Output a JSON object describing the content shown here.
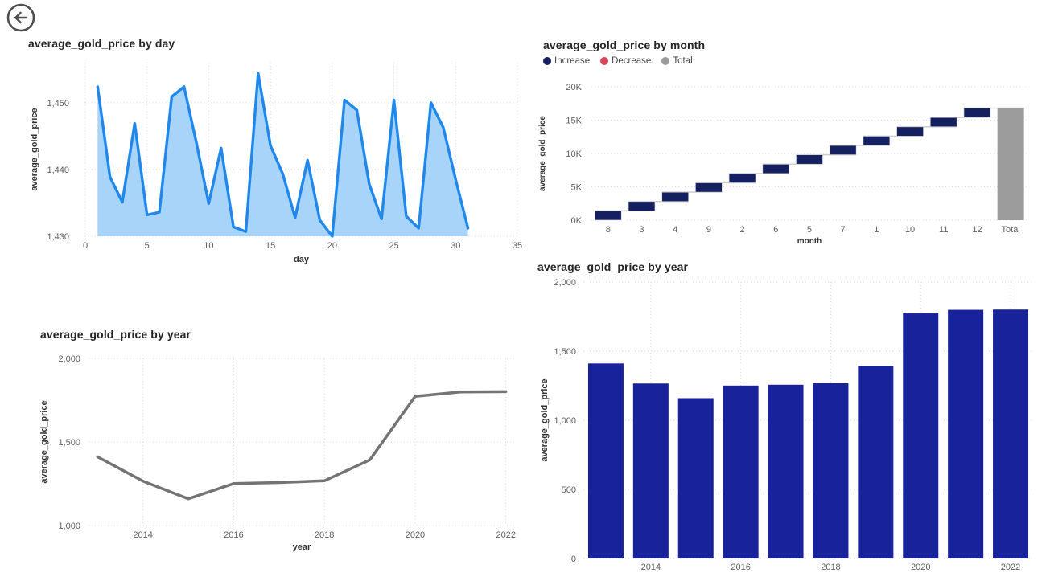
{
  "icons": {
    "back": "arrow-left-circle-icon"
  },
  "colors": {
    "title_text": "#252423",
    "tick_text": "#605e5c",
    "axis_title_text": "#333333",
    "gridline": "#d9d9d9",
    "back_icon": "#4f4f4f"
  },
  "chart_data": [
    {
      "id": "day_area",
      "type": "area",
      "title": "average_gold_price by day",
      "xlabel": "day",
      "ylabel": "average_gold_price",
      "x": [
        1,
        2,
        3,
        4,
        5,
        6,
        7,
        8,
        9,
        10,
        11,
        12,
        13,
        14,
        15,
        16,
        17,
        18,
        19,
        20,
        21,
        22,
        23,
        24,
        25,
        26,
        27,
        28,
        29,
        30,
        31
      ],
      "y": [
        1452.4,
        1438.9,
        1435.1,
        1446.9,
        1433.2,
        1433.6,
        1450.9,
        1452.4,
        1444.0,
        1434.9,
        1443.2,
        1431.4,
        1430.7,
        1454.4,
        1443.6,
        1439.3,
        1432.8,
        1441.4,
        1432.4,
        1430.0,
        1450.4,
        1448.9,
        1437.8,
        1432.6,
        1450.4,
        1433.0,
        1431.2,
        1450.0,
        1446.3,
        1438.5,
        1431.2
      ],
      "xlim": [
        0,
        35
      ],
      "ylim": [
        1430,
        1456
      ],
      "x_ticks": [
        0,
        5,
        10,
        15,
        20,
        25,
        30,
        35
      ],
      "y_ticks": [
        1430,
        1440,
        1450
      ],
      "y_tick_labels": [
        "1,430",
        "1,440",
        "1,450"
      ],
      "grid": true,
      "legend_position": "none",
      "line_color": "#1f88ea",
      "fill_color": "#a9d4f9"
    },
    {
      "id": "month_waterfall",
      "type": "waterfall",
      "title": "average_gold_price by month",
      "xlabel": "month",
      "ylabel": "average_gold_price",
      "categories": [
        "8",
        "3",
        "4",
        "9",
        "2",
        "6",
        "5",
        "7",
        "1",
        "10",
        "11",
        "12"
      ],
      "increments": [
        1400,
        1400,
        1400,
        1400,
        1400,
        1400,
        1400,
        1400,
        1400,
        1400,
        1400,
        1400
      ],
      "total": 16800,
      "total_label": "Total",
      "ylim": [
        0,
        20000
      ],
      "y_ticks": [
        0,
        5000,
        10000,
        15000,
        20000
      ],
      "y_tick_labels": [
        "0K",
        "5K",
        "10K",
        "15K",
        "20K"
      ],
      "grid": true,
      "legend_position": "top",
      "legend": [
        {
          "label": "Increase",
          "color": "#14205f"
        },
        {
          "label": "Decrease",
          "color": "#d6495a"
        },
        {
          "label": "Total",
          "color": "#9c9c9c"
        }
      ],
      "connector_color": "#cfcfcf"
    },
    {
      "id": "year_line",
      "type": "line",
      "title": "average_gold_price by year",
      "xlabel": "year",
      "ylabel": "average_gold_price",
      "x": [
        2013,
        2014,
        2015,
        2016,
        2017,
        2018,
        2019,
        2020,
        2021,
        2022
      ],
      "y": [
        1411,
        1266,
        1160,
        1251,
        1257,
        1268,
        1393,
        1773,
        1799,
        1801
      ],
      "xlim": [
        2012.8,
        2022.2
      ],
      "ylim": [
        1000,
        2000
      ],
      "x_ticks": [
        2014,
        2016,
        2018,
        2020,
        2022
      ],
      "y_ticks": [
        1000,
        1500,
        2000
      ],
      "y_tick_labels": [
        "1,000",
        "1,500",
        "2,000"
      ],
      "grid": true,
      "legend_position": "none",
      "line_color": "#747474"
    },
    {
      "id": "year_bar",
      "type": "bar",
      "title": "average_gold_price by year",
      "xlabel": "year",
      "ylabel": "average_gold_price",
      "categories": [
        2013,
        2014,
        2015,
        2016,
        2017,
        2018,
        2019,
        2020,
        2021,
        2022
      ],
      "values": [
        1411,
        1266,
        1160,
        1251,
        1257,
        1268,
        1393,
        1773,
        1799,
        1801
      ],
      "ylim": [
        0,
        2000
      ],
      "x_ticks": [
        2014,
        2016,
        2018,
        2020,
        2022
      ],
      "y_ticks": [
        0,
        500,
        1000,
        1500,
        2000
      ],
      "y_tick_labels": [
        "0",
        "500",
        "1,000",
        "1,500",
        "2,000"
      ],
      "grid": true,
      "legend_position": "none",
      "bar_color": "#17229b"
    }
  ]
}
